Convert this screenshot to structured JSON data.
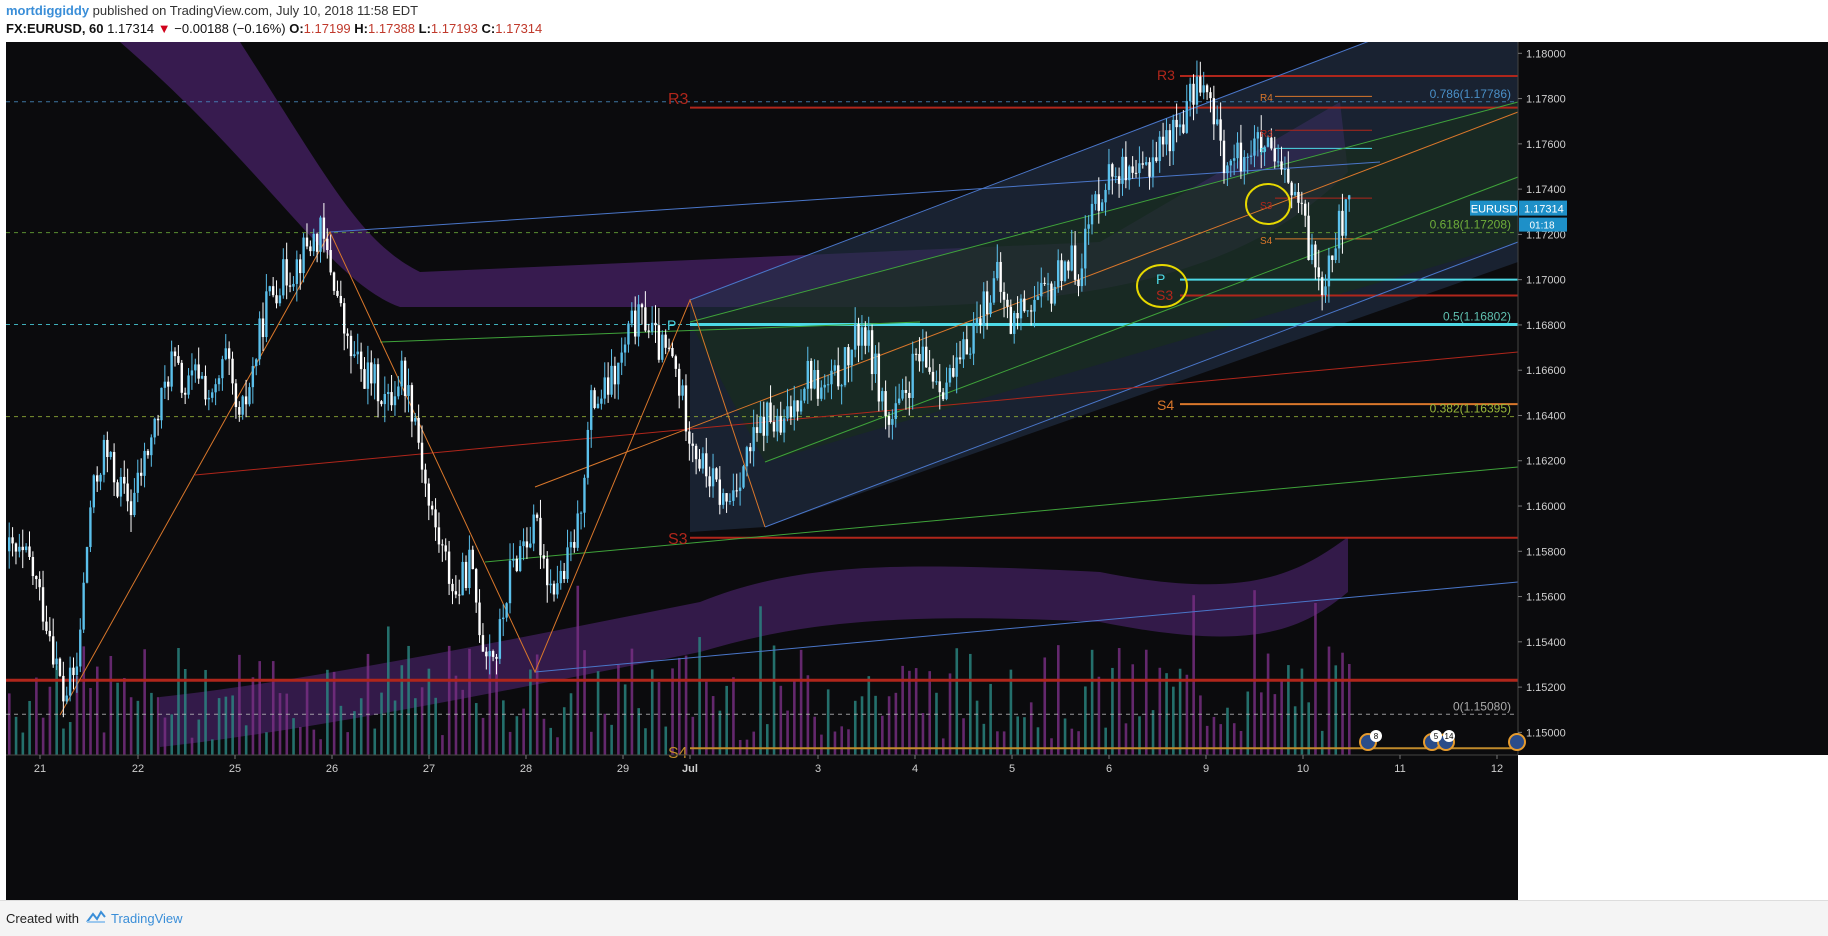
{
  "header": {
    "author": "mortdiggiddy",
    "published": "published on TradingView.com, July 10, 2018 11:58 EDT",
    "symbol": "FX:EURUSD, 60",
    "last": "1.17314",
    "arrow": "▼",
    "change": "−0.00188 (−0.16%)",
    "open_label": "O:",
    "open": "1.17199",
    "high_label": "H:",
    "high": "1.17388",
    "low_label": "L:",
    "low": "1.17193",
    "close_label": "C:",
    "close": "1.17314"
  },
  "footer": {
    "created_with": "Created with",
    "brand": "TradingView"
  },
  "colors": {
    "background": "#0b0b0d",
    "bull": "#5bc0eb",
    "bear": "#ffffff",
    "cloud": "#5c2a86",
    "pivot_red": "#c0392b",
    "fib_green": "#7ab33a",
    "channel_blue": "#4a76c9",
    "cyan": "#4dd9e6",
    "orange": "#d9772b"
  },
  "chart_data": {
    "type": "candlestick",
    "title": "",
    "xlabel": "",
    "ylabel": "",
    "ylim": [
      1.149,
      1.1805
    ],
    "x_ticks": [
      "21",
      "22",
      "25",
      "26",
      "27",
      "28",
      "29",
      "Jul",
      "3",
      "4",
      "5",
      "6",
      "9",
      "10",
      "11",
      "12"
    ],
    "y_ticks": [
      "1.18000",
      "1.17800",
      "1.17600",
      "1.17400",
      "1.17200",
      "1.17000",
      "1.16800",
      "1.16600",
      "1.16400",
      "1.16200",
      "1.16000",
      "1.15800",
      "1.15600",
      "1.15400",
      "1.15200",
      "1.15000"
    ],
    "last_price_label": {
      "symbol": "EURUSD",
      "price": "1.17314",
      "countdown": "01:18"
    },
    "fib_levels": [
      {
        "label": "0.786(1.17786)",
        "value": 1.17786
      },
      {
        "label": "0.618(1.17208)",
        "value": 1.17208
      },
      {
        "label": "0.5(1.16802)",
        "value": 1.16802
      },
      {
        "label": "0.382(1.16395)",
        "value": 1.16395
      },
      {
        "label": "0(1.15080)",
        "value": 1.1508
      }
    ],
    "pivot_labels": [
      {
        "label": "R3",
        "value": 1.1776
      },
      {
        "label": "S3",
        "value": 1.1586
      },
      {
        "label": "S4",
        "value": 1.1493
      },
      {
        "label": "R3",
        "value": 1.179
      },
      {
        "label": "R4",
        "value": 1.1781
      },
      {
        "label": "P",
        "value": 1.17
      },
      {
        "label": "S3",
        "value": 1.1693
      },
      {
        "label": "S4",
        "value": 1.1645
      },
      {
        "label": "R3",
        "value": 1.1766
      },
      {
        "label": "P",
        "value": 1.1758
      },
      {
        "label": "S3",
        "value": 1.1736
      },
      {
        "label": "S4",
        "value": 1.1718
      }
    ],
    "support_level": 1.1523,
    "event_badges": [
      "8",
      "5",
      "14"
    ],
    "series": [
      {
        "name": "EURUSD",
        "hourly_close_path": [
          [
            0,
            1.158
          ],
          [
            6,
            1.1575
          ],
          [
            12,
            1.1545
          ],
          [
            16,
            1.1515
          ],
          [
            20,
            1.1528
          ],
          [
            24,
            1.16
          ],
          [
            28,
            1.1625
          ],
          [
            32,
            1.161
          ],
          [
            36,
            1.16
          ],
          [
            40,
            1.162
          ],
          [
            44,
            1.164
          ],
          [
            48,
            1.1665
          ],
          [
            52,
            1.165
          ],
          [
            56,
            1.166
          ],
          [
            60,
            1.1645
          ],
          [
            64,
            1.1665
          ],
          [
            68,
            1.1635
          ],
          [
            72,
            1.166
          ],
          [
            76,
            1.169
          ],
          [
            80,
            1.17
          ],
          [
            84,
            1.1705
          ],
          [
            88,
            1.1715
          ],
          [
            92,
            1.172
          ],
          [
            96,
            1.17
          ],
          [
            100,
            1.167
          ],
          [
            104,
            1.166
          ],
          [
            108,
            1.1655
          ],
          [
            112,
            1.1645
          ],
          [
            116,
            1.166
          ],
          [
            120,
            1.164
          ],
          [
            124,
            1.16
          ],
          [
            128,
            1.158
          ],
          [
            132,
            1.156
          ],
          [
            136,
            1.1575
          ],
          [
            140,
            1.154
          ],
          [
            144,
            1.1535
          ],
          [
            148,
            1.157
          ],
          [
            152,
            1.1585
          ],
          [
            156,
            1.159
          ],
          [
            160,
            1.1565
          ],
          [
            164,
            1.157
          ],
          [
            168,
            1.159
          ],
          [
            172,
            1.1645
          ],
          [
            176,
            1.165
          ],
          [
            180,
            1.166
          ],
          [
            184,
            1.168
          ],
          [
            188,
            1.1683
          ],
          [
            192,
            1.167
          ],
          [
            196,
            1.1665
          ],
          [
            200,
            1.164
          ],
          [
            204,
            1.162
          ],
          [
            208,
            1.161
          ],
          [
            212,
            1.16
          ],
          [
            216,
            1.1615
          ],
          [
            220,
            1.1628
          ],
          [
            224,
            1.164
          ],
          [
            228,
            1.1632
          ],
          [
            232,
            1.1645
          ],
          [
            236,
            1.166
          ],
          [
            240,
            1.165
          ],
          [
            244,
            1.1655
          ],
          [
            248,
            1.1665
          ],
          [
            252,
            1.168
          ],
          [
            256,
            1.166
          ],
          [
            260,
            1.1635
          ],
          [
            264,
            1.1645
          ],
          [
            268,
            1.1665
          ],
          [
            272,
            1.166
          ],
          [
            276,
            1.1655
          ],
          [
            280,
            1.1658
          ],
          [
            284,
            1.1675
          ],
          [
            288,
            1.169
          ],
          [
            292,
            1.17
          ],
          [
            296,
            1.168
          ],
          [
            300,
            1.169
          ],
          [
            304,
            1.169
          ],
          [
            308,
            1.1695
          ],
          [
            312,
            1.171
          ],
          [
            316,
            1.1705
          ],
          [
            320,
            1.173
          ],
          [
            324,
            1.1745
          ],
          [
            328,
            1.175
          ],
          [
            332,
            1.174
          ],
          [
            336,
            1.175
          ],
          [
            340,
            1.176
          ],
          [
            344,
            1.1765
          ],
          [
            348,
            1.1775
          ],
          [
            352,
            1.179
          ],
          [
            356,
            1.177
          ],
          [
            360,
            1.175
          ],
          [
            364,
            1.1755
          ],
          [
            368,
            1.176
          ],
          [
            372,
            1.1755
          ],
          [
            376,
            1.1745
          ],
          [
            380,
            1.1738
          ],
          [
            384,
            1.1715
          ],
          [
            388,
            1.17
          ],
          [
            392,
            1.172
          ],
          [
            396,
            1.1731
          ]
        ]
      }
    ],
    "volume_note": "volume histogram along bottom"
  }
}
